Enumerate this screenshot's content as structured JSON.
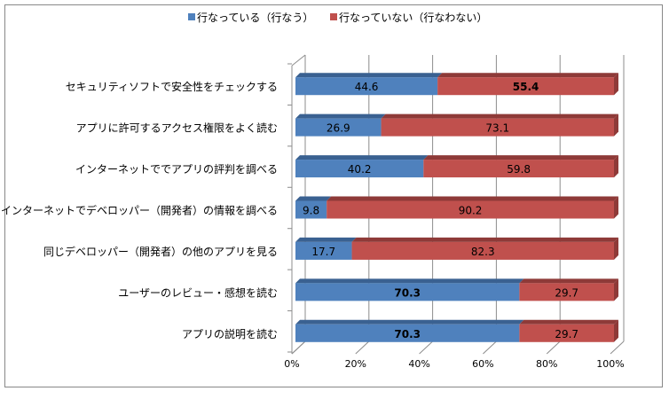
{
  "chart_data": {
    "type": "bar",
    "orientation": "horizontal",
    "stacked": "100%",
    "title": "",
    "xlabel": "",
    "ylabel": "",
    "xlim": [
      0,
      100
    ],
    "x_ticks": [
      "0%",
      "20%",
      "40%",
      "60%",
      "80%",
      "100%"
    ],
    "legend_position": "top",
    "categories": [
      "セキュリティソフトで安全性をチェックする",
      "アプリに許可するアクセス権限をよく読む",
      "インターネットででアプリの評判を調べる",
      "インターネットでデベロッパー（開発者）の情報を調べる",
      "同じデベロッパー（開発者）の他のアプリを見る",
      "ユーザーのレビュー・感想を読む",
      "アプリの説明を読む"
    ],
    "series": [
      {
        "name": "行なっている（行なう）",
        "color": "#4f81bd",
        "values": [
          44.6,
          26.9,
          40.2,
          9.8,
          17.7,
          70.3,
          70.3
        ],
        "labels": [
          "44.6",
          "26.9",
          "40.2",
          "9.8",
          "17.7",
          "70.3",
          "70.3"
        ],
        "bold": [
          false,
          false,
          false,
          false,
          false,
          true,
          true
        ]
      },
      {
        "name": "行なっていない（行なわない）",
        "color": "#c0504d",
        "values": [
          55.4,
          73.1,
          59.8,
          90.2,
          82.3,
          29.7,
          29.7
        ],
        "labels": [
          "55.4",
          "73.1",
          "59.8",
          "90.2",
          "82.3",
          "29.7",
          "29.7"
        ],
        "bold": [
          true,
          false,
          false,
          false,
          false,
          false,
          false
        ]
      }
    ]
  }
}
